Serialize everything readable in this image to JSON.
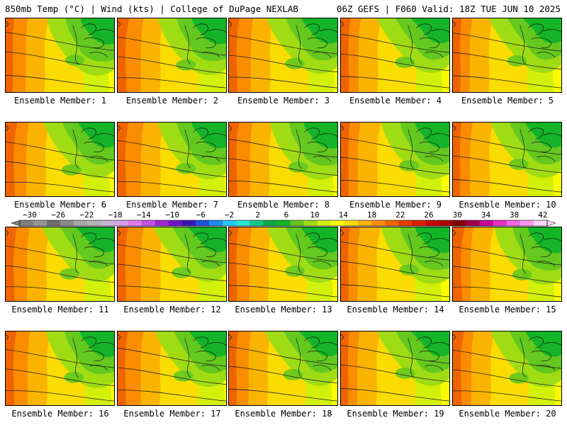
{
  "header": {
    "left_title": "850mb Temp (°C) | Wind (kts) | College of DuPage NEXLAB",
    "right_title": "06Z GEFS | F060 Valid: 18Z TUE JUN 10 2025"
  },
  "members": [
    {
      "label": "Ensemble Member: 1"
    },
    {
      "label": "Ensemble Member: 2"
    },
    {
      "label": "Ensemble Member: 3"
    },
    {
      "label": "Ensemble Member: 4"
    },
    {
      "label": "Ensemble Member: 5"
    },
    {
      "label": "Ensemble Member: 6"
    },
    {
      "label": "Ensemble Member: 7"
    },
    {
      "label": "Ensemble Member: 8"
    },
    {
      "label": "Ensemble Member: 9"
    },
    {
      "label": "Ensemble Member: 10"
    },
    {
      "label": "Ensemble Member: 11"
    },
    {
      "label": "Ensemble Member: 12"
    },
    {
      "label": "Ensemble Member: 13"
    },
    {
      "label": "Ensemble Member: 14"
    },
    {
      "label": "Ensemble Member: 15"
    },
    {
      "label": "Ensemble Member: 16"
    },
    {
      "label": "Ensemble Member: 17"
    },
    {
      "label": "Ensemble Member: 18"
    },
    {
      "label": "Ensemble Member: 19"
    },
    {
      "label": "Ensemble Member: 20"
    }
  ],
  "colorbar": {
    "labels": [
      "−30",
      "−26",
      "−22",
      "−18",
      "−14",
      "−10",
      "−6",
      "−2",
      "2",
      "6",
      "10",
      "14",
      "18",
      "22",
      "26",
      "30",
      "34",
      "38",
      "42"
    ],
    "colors": [
      "#7f7f7f",
      "#969696",
      "#6e6e6e",
      "#8c8c8c",
      "#a8a8a8",
      "#b4b4b4",
      "#c8b4d8",
      "#d79fe6",
      "#e07ae8",
      "#c850e6",
      "#a028d2",
      "#6e14c8",
      "#3c14b4",
      "#1e50dc",
      "#1e8cf0",
      "#28c8f0",
      "#28e6d2",
      "#14c88c",
      "#0aaa46",
      "#14b428",
      "#64c81e",
      "#a0dc14",
      "#d2f00a",
      "#fafa00",
      "#fadc00",
      "#fab400",
      "#fa8c00",
      "#f06400",
      "#e63c00",
      "#dc1e00",
      "#c80000",
      "#aa0000",
      "#820000",
      "#a00050",
      "#c80096",
      "#e632c8",
      "#f064e6",
      "#f596f0",
      "#fad2fa"
    ]
  }
}
